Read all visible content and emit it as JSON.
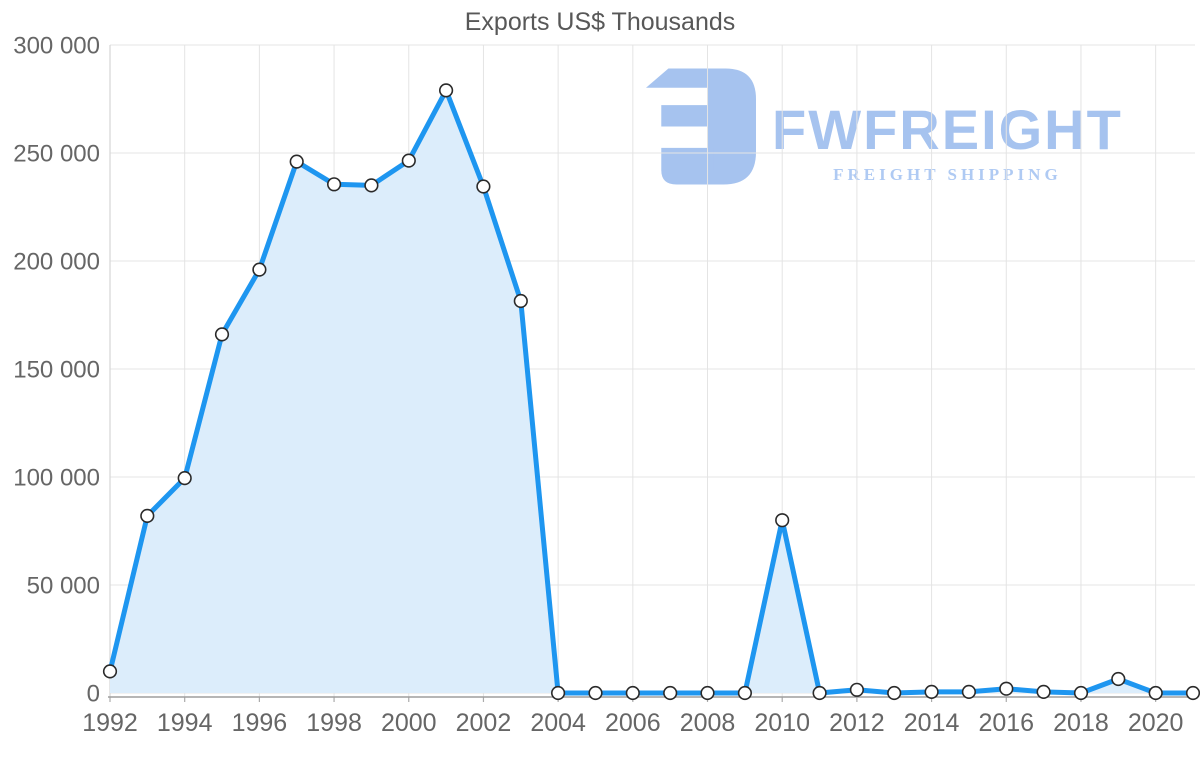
{
  "page": {
    "background": "#ffffff"
  },
  "chart": {
    "title": "Exports US$ Thousands",
    "colors": {
      "line": "#1E96F0",
      "area_fill": "#DCEDFB",
      "marker_fill": "#FFFFFF",
      "marker_stroke": "#2A2A2A",
      "grid": "#E4E4E4",
      "axis_line": "#9E9E9E",
      "tick_mark": "#ABABAB",
      "tick_text": "#666666",
      "title_text": "#585858"
    }
  },
  "watermark": {
    "brand": "FWFREIGHT",
    "tagline": "FREIGHT SHIPPING",
    "icon": "fwfreight-logo-mark",
    "color": "#A6C3EF"
  },
  "chart_data": {
    "type": "area",
    "title": "Exports US$ Thousands",
    "x": [
      1992,
      1993,
      1994,
      1995,
      1996,
      1997,
      1998,
      1999,
      2000,
      2001,
      2002,
      2003,
      2004,
      2005,
      2006,
      2007,
      2008,
      2009,
      2010,
      2011,
      2012,
      2013,
      2014,
      2015,
      2016,
      2017,
      2018,
      2019,
      2020,
      2021
    ],
    "values": [
      10000,
      82000,
      99500,
      166000,
      196000,
      246000,
      235500,
      235000,
      246500,
      279000,
      234500,
      181500,
      0,
      0,
      0,
      0,
      0,
      0,
      80000,
      0,
      1500,
      0,
      500,
      500,
      2000,
      500,
      0,
      6500,
      0,
      0
    ],
    "xlabel": "",
    "ylabel": "",
    "ylim": [
      0,
      300000
    ],
    "yticks": [
      0,
      50000,
      100000,
      150000,
      200000,
      250000,
      300000
    ],
    "ytick_labels": [
      "0",
      "50 000",
      "100 000",
      "150 000",
      "200 000",
      "250 000",
      "300 000"
    ],
    "xticks": [
      1992,
      1994,
      1996,
      1998,
      2000,
      2002,
      2004,
      2006,
      2008,
      2010,
      2012,
      2014,
      2016,
      2018,
      2020
    ],
    "xtick_labels": [
      "1992",
      "1994",
      "1996",
      "1998",
      "2000",
      "2002",
      "2004",
      "2006",
      "2008",
      "2010",
      "2012",
      "2014",
      "2016",
      "2018",
      "2020"
    ],
    "grid": true,
    "legend": false,
    "markers": true
  }
}
